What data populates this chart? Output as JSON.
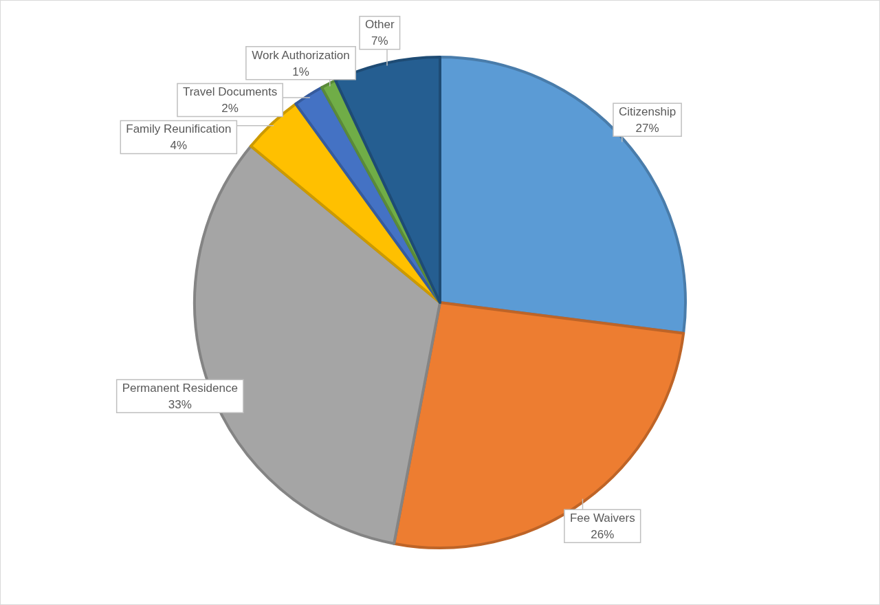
{
  "chart_data": {
    "type": "pie",
    "categories": [
      "Citizenship",
      "Fee Waivers",
      "Permanent Residence",
      "Family Reunification",
      "Travel Documents",
      "Work Authorization",
      "Other"
    ],
    "values": [
      27,
      26,
      33,
      4,
      2,
      1,
      7
    ],
    "colors": [
      "#5b9bd5",
      "#ed7d31",
      "#a5a5a5",
      "#ffc000",
      "#4472c4",
      "#70ad47",
      "#255e91"
    ],
    "value_labels": [
      "27%",
      "26%",
      "33%",
      "4%",
      "2%",
      "1%",
      "7%"
    ],
    "legend": false
  }
}
